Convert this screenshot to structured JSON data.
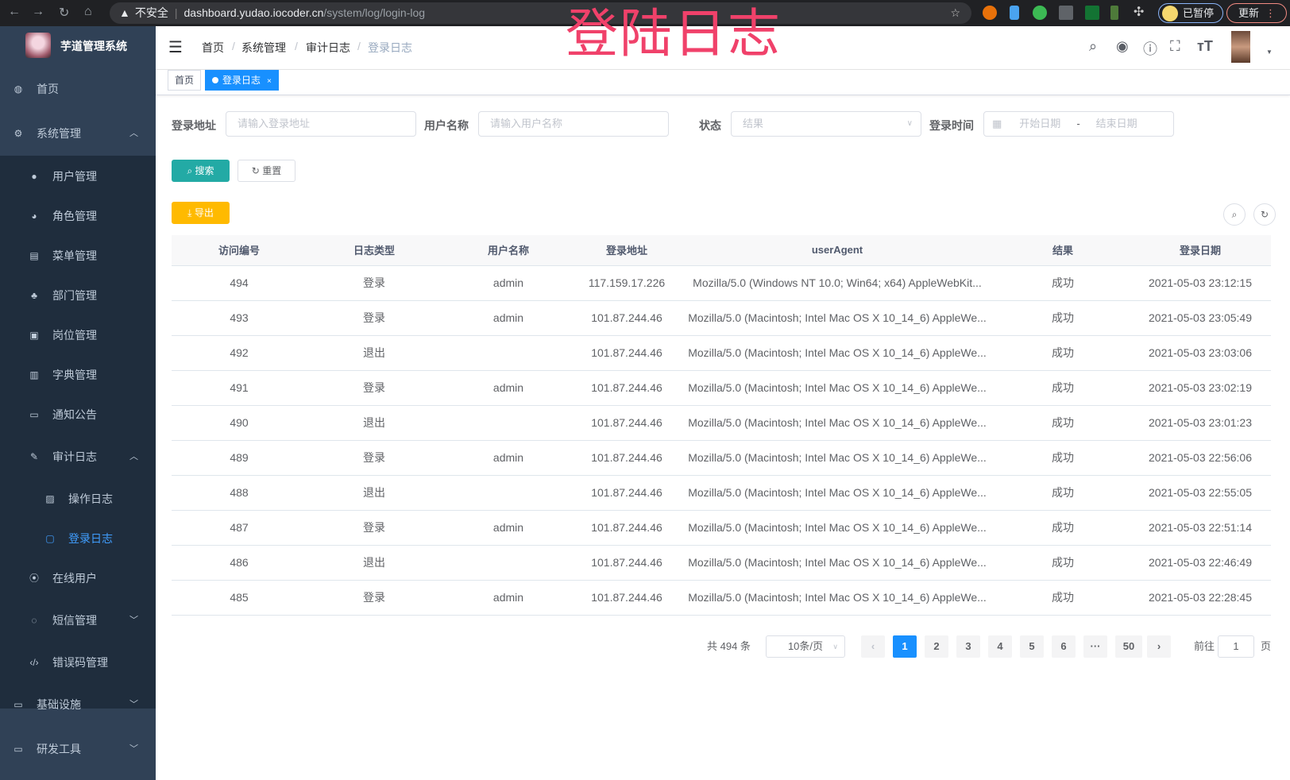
{
  "browser": {
    "url_warning": "不安全",
    "url_host": "dashboard.yudao.iocoder.cn",
    "url_path": "/system/log/login-log",
    "paused_label": "已暂停",
    "update_label": "更新"
  },
  "overlay_title": "登陆日志",
  "sidebar": {
    "title": "芋道管理系统",
    "items": [
      {
        "label": "首页",
        "icon": "dashboard-icon"
      },
      {
        "label": "系统管理",
        "icon": "gear-icon",
        "arrow": "^"
      },
      {
        "label": "用户管理",
        "icon": "user-icon"
      },
      {
        "label": "角色管理",
        "icon": "peoples-icon"
      },
      {
        "label": "菜单管理",
        "icon": "tree-table-icon"
      },
      {
        "label": "部门管理",
        "icon": "tree-icon"
      },
      {
        "label": "岗位管理",
        "icon": "post-icon"
      },
      {
        "label": "字典管理",
        "icon": "dict-icon"
      },
      {
        "label": "通知公告",
        "icon": "message-icon"
      },
      {
        "label": "审计日志",
        "icon": "log-icon",
        "arrow": "^"
      },
      {
        "label": "操作日志",
        "icon": "form-icon"
      },
      {
        "label": "登录日志",
        "icon": "logininfor-icon",
        "active": true
      },
      {
        "label": "在线用户",
        "icon": "online-icon"
      },
      {
        "label": "短信管理",
        "icon": "validCode-icon",
        "arrow": "v"
      },
      {
        "label": "错误码管理",
        "icon": "code-icon"
      },
      {
        "label": "基础设施",
        "icon": "monitor-icon",
        "arrow": "v"
      },
      {
        "label": "研发工具",
        "icon": "tool-icon",
        "arrow": "v"
      }
    ]
  },
  "header": {
    "breadcrumb": [
      "首页",
      "系统管理",
      "审计日志",
      "登录日志"
    ]
  },
  "tags": [
    {
      "label": "首页"
    },
    {
      "label": "登录日志",
      "close": "×"
    }
  ],
  "filters": {
    "ip_label": "登录地址",
    "ip_placeholder": "请输入登录地址",
    "user_label": "用户名称",
    "user_placeholder": "请输入用户名称",
    "status_label": "状态",
    "status_placeholder": "结果",
    "time_label": "登录时间",
    "start_placeholder": "开始日期",
    "range_sep": "-",
    "end_placeholder": "结束日期"
  },
  "buttons": {
    "search": "搜索",
    "reset": "重置",
    "export": "导出"
  },
  "table": {
    "headers": [
      "访问编号",
      "日志类型",
      "用户名称",
      "登录地址",
      "userAgent",
      "结果",
      "登录日期"
    ],
    "rows": [
      [
        "494",
        "登录",
        "admin",
        "117.159.17.226",
        "Mozilla/5.0 (Windows NT 10.0; Win64; x64) AppleWebKit...",
        "成功",
        "2021-05-03 23:12:15"
      ],
      [
        "493",
        "登录",
        "admin",
        "101.87.244.46",
        "Mozilla/5.0 (Macintosh; Intel Mac OS X 10_14_6) AppleWe...",
        "成功",
        "2021-05-03 23:05:49"
      ],
      [
        "492",
        "退出",
        "",
        "101.87.244.46",
        "Mozilla/5.0 (Macintosh; Intel Mac OS X 10_14_6) AppleWe...",
        "成功",
        "2021-05-03 23:03:06"
      ],
      [
        "491",
        "登录",
        "admin",
        "101.87.244.46",
        "Mozilla/5.0 (Macintosh; Intel Mac OS X 10_14_6) AppleWe...",
        "成功",
        "2021-05-03 23:02:19"
      ],
      [
        "490",
        "退出",
        "",
        "101.87.244.46",
        "Mozilla/5.0 (Macintosh; Intel Mac OS X 10_14_6) AppleWe...",
        "成功",
        "2021-05-03 23:01:23"
      ],
      [
        "489",
        "登录",
        "admin",
        "101.87.244.46",
        "Mozilla/5.0 (Macintosh; Intel Mac OS X 10_14_6) AppleWe...",
        "成功",
        "2021-05-03 22:56:06"
      ],
      [
        "488",
        "退出",
        "",
        "101.87.244.46",
        "Mozilla/5.0 (Macintosh; Intel Mac OS X 10_14_6) AppleWe...",
        "成功",
        "2021-05-03 22:55:05"
      ],
      [
        "487",
        "登录",
        "admin",
        "101.87.244.46",
        "Mozilla/5.0 (Macintosh; Intel Mac OS X 10_14_6) AppleWe...",
        "成功",
        "2021-05-03 22:51:14"
      ],
      [
        "486",
        "退出",
        "",
        "101.87.244.46",
        "Mozilla/5.0 (Macintosh; Intel Mac OS X 10_14_6) AppleWe...",
        "成功",
        "2021-05-03 22:46:49"
      ],
      [
        "485",
        "登录",
        "admin",
        "101.87.244.46",
        "Mozilla/5.0 (Macintosh; Intel Mac OS X 10_14_6) AppleWe...",
        "成功",
        "2021-05-03 22:28:45"
      ]
    ]
  },
  "pagination": {
    "total": "共 494 条",
    "page_size": "10条/页",
    "pages": [
      "1",
      "2",
      "3",
      "4",
      "5",
      "6",
      "···",
      "50"
    ],
    "current": "1",
    "goto_prefix": "前往",
    "goto_value": "1",
    "goto_suffix": "页"
  }
}
